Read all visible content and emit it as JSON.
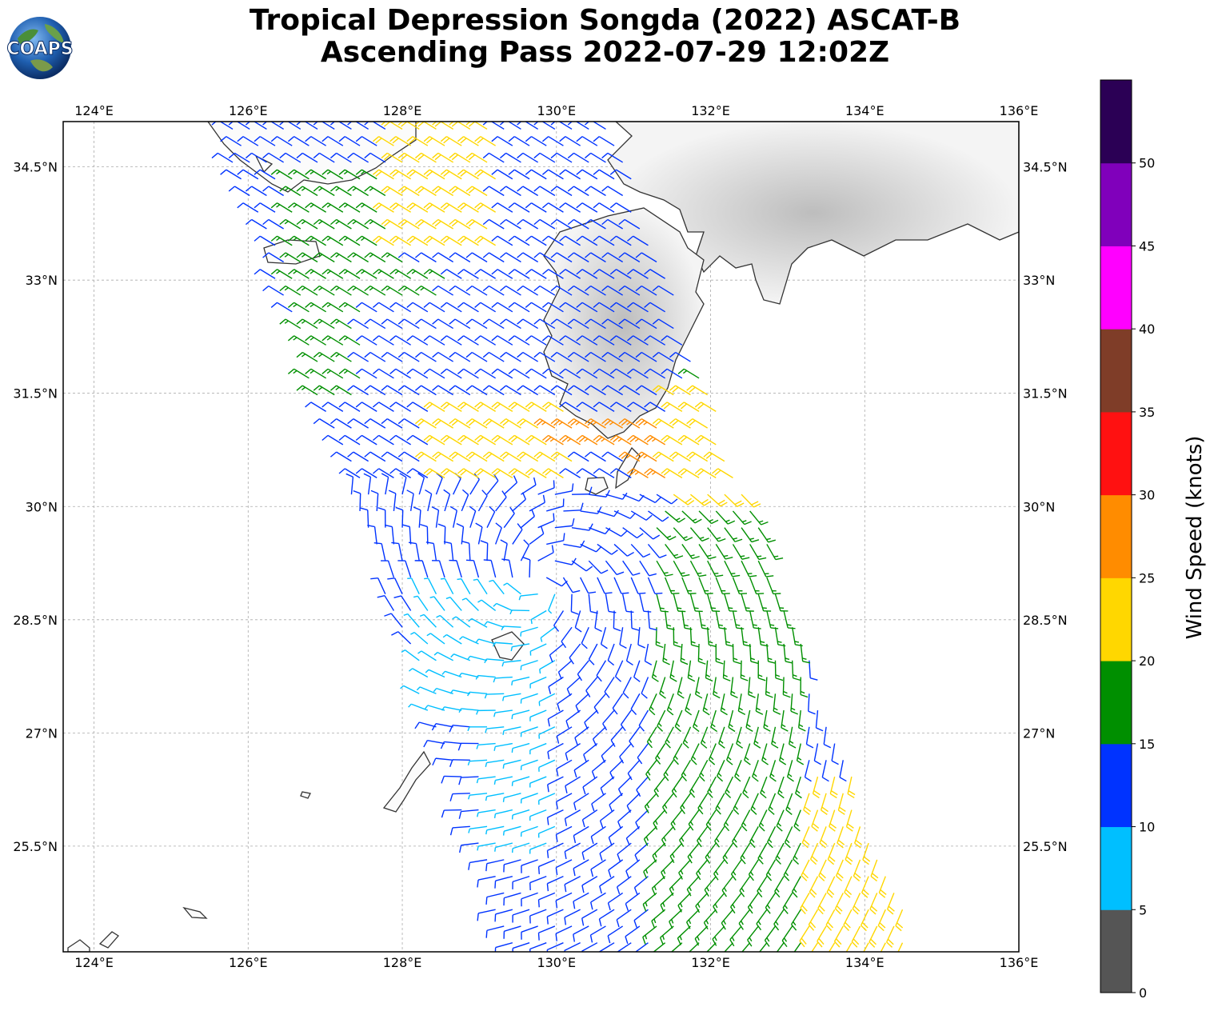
{
  "header": {
    "title_line1": "Tropical Depression Songda (2022) ASCAT-B",
    "title_line2": "Ascending Pass 2022-07-29 12:02Z",
    "logo_text": "COAPS"
  },
  "map": {
    "lon_labels": [
      "124°E",
      "126°E",
      "128°E",
      "130°E",
      "132°E",
      "134°E",
      "136°E"
    ],
    "lat_labels": [
      "34.5°N",
      "33°N",
      "31.5°N",
      "30°N",
      "28.5°N",
      "27°N",
      "25.5°N"
    ],
    "lon_values": [
      124,
      126,
      128,
      130,
      132,
      134,
      136
    ],
    "lat_values": [
      34.5,
      33,
      31.5,
      30,
      28.5,
      27,
      25.5
    ],
    "extent": {
      "lon_min": 123.6,
      "lon_max": 136.0,
      "lat_min": 24.1,
      "lat_max": 35.1
    }
  },
  "colorbar": {
    "label": "Wind Speed (knots)",
    "ticks": [
      "0",
      "5",
      "10",
      "15",
      "20",
      "25",
      "30",
      "35",
      "40",
      "45",
      "50"
    ],
    "colors": [
      "#555555",
      "#00bfff",
      "#0033ff",
      "#008f00",
      "#ffd700",
      "#ff8c00",
      "#ff1111",
      "#7f3d28",
      "#ff00ff",
      "#8000bb",
      "#2b0055"
    ]
  },
  "chart_data": {
    "type": "wind-barb-map",
    "quantity": "Wind Speed (knots)",
    "speed_bins": [
      {
        "range": "0-5",
        "color": "#555555"
      },
      {
        "range": "5-10",
        "color": "#00bfff"
      },
      {
        "range": "10-15",
        "color": "#0033ff"
      },
      {
        "range": "15-20",
        "color": "#008f00"
      },
      {
        "range": "20-25",
        "color": "#ffd700"
      },
      {
        "range": "25-30",
        "color": "#ff8c00"
      },
      {
        "range": "30-35",
        "color": "#ff1111"
      },
      {
        "range": "35-40",
        "color": "#7f3d28"
      },
      {
        "range": "40-45",
        "color": "#ff00ff"
      },
      {
        "range": "45-50",
        "color": "#8000bb"
      },
      {
        "range": "50-55",
        "color": "#2b0055"
      }
    ],
    "swath_corners_lonlat": [
      [
        125.6,
        35.1
      ],
      [
        130.7,
        35.1
      ],
      [
        134.7,
        24.1
      ],
      [
        129.4,
        24.1
      ]
    ],
    "swath2_corners_lonlat": [
      [
        131.9,
        32.8
      ],
      [
        132.3,
        32.8
      ],
      [
        134.7,
        24.1
      ],
      [
        132.2,
        24.1
      ]
    ],
    "wind_regions": [
      {
        "lon": [
          125.6,
          127.2
        ],
        "lat": [
          34.0,
          35.1
        ],
        "speed": 12
      },
      {
        "lon": [
          126.5,
          128.2
        ],
        "lat": [
          32.8,
          34.5
        ],
        "speed": 17
      },
      {
        "lon": [
          127.8,
          129.3
        ],
        "lat": [
          33.4,
          35.0
        ],
        "speed": 22
      },
      {
        "lon": [
          126.6,
          128.6
        ],
        "lat": [
          31.3,
          33.2
        ],
        "speed": 16
      },
      {
        "lon": [
          127.5,
          130.2
        ],
        "lat": [
          30.6,
          32.6
        ],
        "speed": 12
      },
      {
        "lon": [
          128.4,
          130.3
        ],
        "lat": [
          30.2,
          31.4
        ],
        "speed": 22
      },
      {
        "lon": [
          129.9,
          131.1
        ],
        "lat": [
          30.6,
          31.2
        ],
        "speed": 27
      },
      {
        "lon": [
          130.3,
          130.7
        ],
        "lat": [
          30.9,
          31.0
        ],
        "speed": 32
      },
      {
        "lon": [
          131.0,
          132.9
        ],
        "lat": [
          30.3,
          31.1
        ],
        "speed": 27
      },
      {
        "lon": [
          131.5,
          132.9
        ],
        "lat": [
          29.6,
          31.6
        ],
        "speed": 22
      },
      {
        "lon": [
          131.8,
          132.5
        ],
        "lat": [
          31.6,
          32.6
        ],
        "speed": 17
      },
      {
        "lon": [
          127.8,
          130.0
        ],
        "lat": [
          29.0,
          30.0
        ],
        "speed": 13
      },
      {
        "lon": [
          128.2,
          130.0
        ],
        "lat": [
          27.2,
          29.0
        ],
        "speed": 8
      },
      {
        "lon": [
          129.0,
          131.0
        ],
        "lat": [
          25.5,
          28.0
        ],
        "speed": 8
      },
      {
        "lon": [
          130.0,
          131.8
        ],
        "lat": [
          24.1,
          30.0
        ],
        "speed": 13
      },
      {
        "lon": [
          131.2,
          133.2
        ],
        "lat": [
          24.1,
          30.0
        ],
        "speed": 17
      },
      {
        "lon": [
          133.2,
          134.6
        ],
        "lat": [
          24.1,
          26.5
        ],
        "speed": 22
      }
    ]
  }
}
